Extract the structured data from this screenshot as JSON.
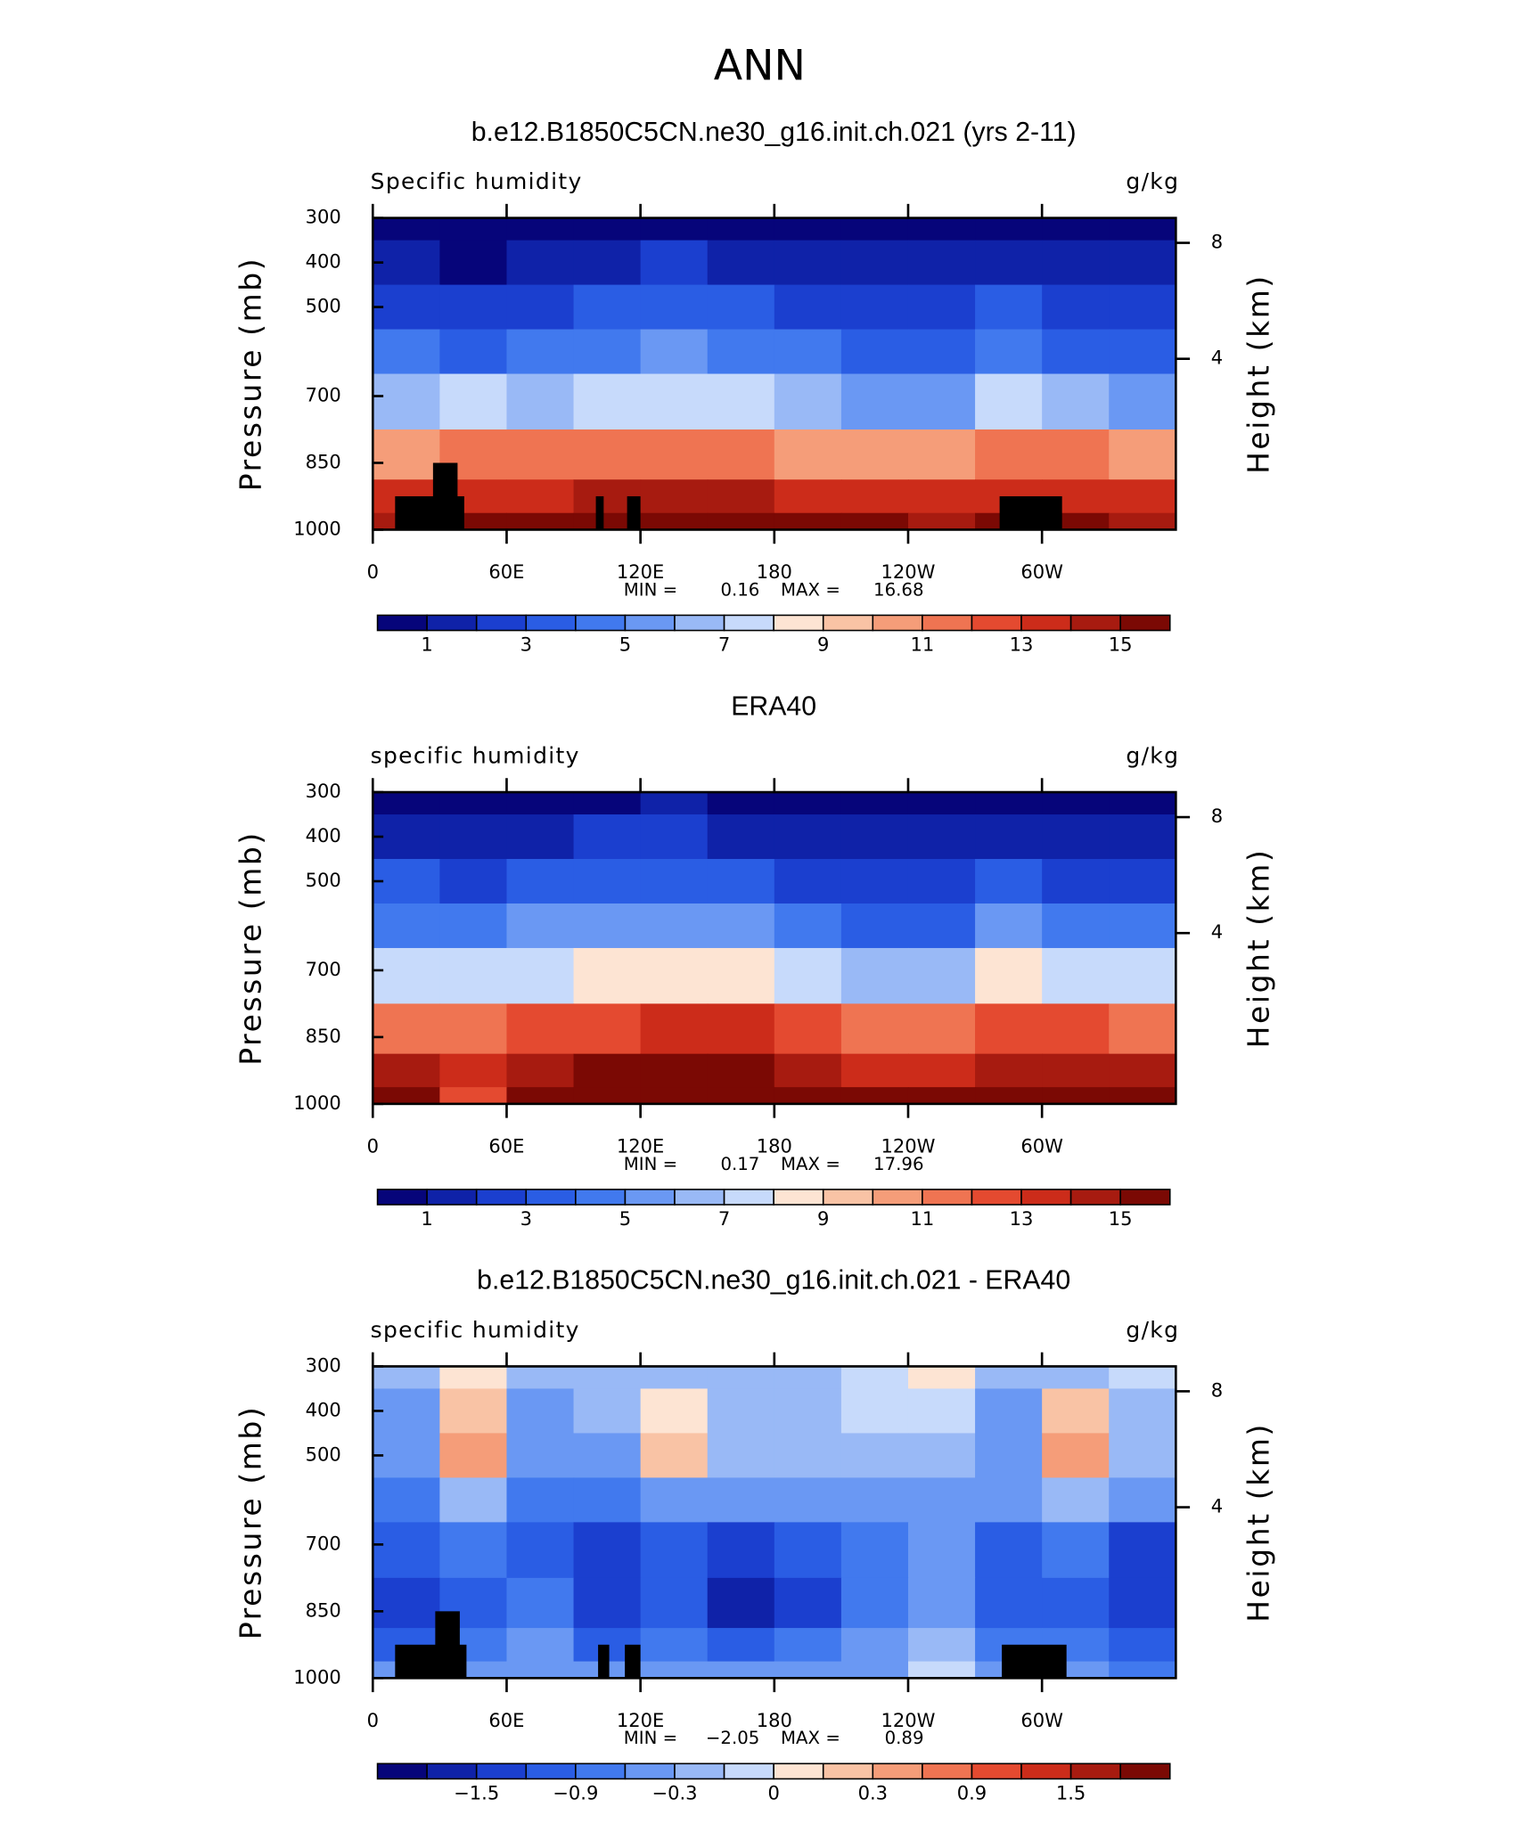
{
  "title": "ANN",
  "chart_data": [
    {
      "type": "contour",
      "title": "b.e12.B1850C5CN.ne30_g16.init.ch.021 (yrs 2-11)",
      "left_label": "Specific humidity",
      "right_label": "g/kg",
      "ylabel": "Pressure (mb)",
      "y2label": "Height (km)",
      "x": [
        15,
        45,
        75,
        105,
        135,
        165,
        195,
        225,
        255,
        285,
        315,
        345
      ],
      "y": [
        300,
        400,
        500,
        600,
        700,
        850,
        925,
        1000
      ],
      "z": [
        [
          0.5,
          0.4,
          0.6,
          0.8,
          0.9,
          0.7,
          0.5,
          0.4,
          0.4,
          0.7,
          0.5,
          0.5
        ],
        [
          1.3,
          0.9,
          1.5,
          1.8,
          2.0,
          1.7,
          1.3,
          1.0,
          1.0,
          1.6,
          1.3,
          1.1
        ],
        [
          2.6,
          2.0,
          2.8,
          3.2,
          3.5,
          3.2,
          2.6,
          2.0,
          2.1,
          3.0,
          2.6,
          2.3
        ],
        [
          4.0,
          3.8,
          4.2,
          4.8,
          5.2,
          4.8,
          4.0,
          3.2,
          3.4,
          4.6,
          3.9,
          3.6
        ],
        [
          6.2,
          7.0,
          6.3,
          7.0,
          7.4,
          7.0,
          6.2,
          5.2,
          5.6,
          7.4,
          6.0,
          5.8
        ],
        [
          10.5,
          11.0,
          11.0,
          11.5,
          11.8,
          11.5,
          10.8,
          10.0,
          10.5,
          11.5,
          11.0,
          10.5
        ],
        [
          13.2,
          13.5,
          13.5,
          14.0,
          14.3,
          14.0,
          13.5,
          13.0,
          13.2,
          13.8,
          13.5,
          13.0
        ],
        [
          14.5,
          15.0,
          15.5,
          16.2,
          16.5,
          16.0,
          15.5,
          15.2,
          14.8,
          15.5,
          15.0,
          14.5
        ]
      ],
      "xlim": [
        0,
        360
      ],
      "xticks": [
        0,
        {
          "value": 60,
          "label": "60E"
        },
        {
          "value": 120,
          "label": "120E"
        },
        180,
        {
          "value": 240,
          "label": "120W"
        },
        {
          "value": 300,
          "label": "60W"
        }
      ],
      "ylim": [
        1000,
        300
      ],
      "yticks": [
        300,
        400,
        500,
        700,
        850,
        1000
      ],
      "y2ticks": [
        4,
        8
      ],
      "min_label": "MIN =",
      "min": 0.16,
      "max_label": "MAX =",
      "max": 16.68,
      "masks": [
        {
          "x": [
            10,
            41
          ],
          "p": 925
        },
        {
          "x": [
            27,
            38
          ],
          "p": 850
        },
        {
          "x": [
            100,
            103.5
          ],
          "p": 925
        },
        {
          "x": [
            114,
            120
          ],
          "p": 925
        },
        {
          "x": [
            281,
            309
          ],
          "p": 925
        }
      ],
      "colorbar": {
        "levels": [
          1,
          2,
          3,
          4,
          5,
          6,
          7,
          8,
          9,
          10,
          11,
          12,
          13,
          14,
          15
        ],
        "colors": [
          "#06057a",
          "#0f22a8",
          "#1b3fcf",
          "#2a5de4",
          "#4179ee",
          "#6a98f3",
          "#99b9f6",
          "#c7dafb",
          "#fde4d3",
          "#f9c3a5",
          "#f59d79",
          "#ef7452",
          "#e44a30",
          "#cc2c1a",
          "#a71b10",
          "#7b0904"
        ],
        "ticks": [
          1,
          3,
          5,
          7,
          9,
          11,
          13,
          15
        ]
      }
    },
    {
      "type": "contour",
      "title": "ERA40",
      "left_label": "specific humidity",
      "right_label": "g/kg",
      "ylabel": "Pressure (mb)",
      "y2label": "Height (km)",
      "x": [
        15,
        45,
        75,
        105,
        135,
        165,
        195,
        225,
        255,
        285,
        315,
        345
      ],
      "y": [
        300,
        400,
        500,
        600,
        700,
        850,
        925,
        1000
      ],
      "z": [
        [
          0.6,
          0.4,
          0.7,
          0.9,
          1.0,
          0.8,
          0.6,
          0.4,
          0.4,
          0.8,
          0.6,
          0.6
        ],
        [
          1.5,
          1.0,
          1.8,
          2.1,
          2.2,
          1.9,
          1.5,
          1.1,
          1.1,
          1.8,
          1.4,
          1.3
        ],
        [
          3.0,
          2.2,
          3.2,
          3.6,
          3.8,
          3.5,
          2.9,
          2.2,
          2.3,
          3.3,
          2.8,
          2.6
        ],
        [
          4.8,
          4.0,
          5.0,
          5.6,
          5.9,
          5.5,
          4.6,
          3.7,
          3.8,
          5.2,
          4.4,
          4.3
        ],
        [
          7.4,
          7.6,
          7.5,
          8.3,
          8.6,
          8.4,
          7.3,
          6.0,
          6.2,
          8.2,
          7.0,
          7.0
        ],
        [
          11.8,
          11.5,
          12.0,
          12.8,
          13.1,
          13.0,
          12.0,
          11.0,
          11.0,
          12.6,
          12.0,
          11.9
        ],
        [
          14.2,
          13.0,
          14.5,
          15.1,
          15.3,
          15.0,
          14.5,
          13.7,
          13.6,
          14.6,
          14.3,
          14.1
        ],
        [
          15.2,
          12.5,
          16.0,
          16.8,
          17.0,
          16.7,
          16.0,
          15.5,
          15.0,
          16.0,
          15.6,
          15.3
        ]
      ],
      "xlim": [
        0,
        360
      ],
      "xticks": [
        0,
        {
          "value": 60,
          "label": "60E"
        },
        {
          "value": 120,
          "label": "120E"
        },
        180,
        {
          "value": 240,
          "label": "120W"
        },
        {
          "value": 300,
          "label": "60W"
        }
      ],
      "ylim": [
        1000,
        300
      ],
      "yticks": [
        300,
        400,
        500,
        700,
        850,
        1000
      ],
      "y2ticks": [
        4,
        8
      ],
      "min_label": "MIN =",
      "min": 0.17,
      "max_label": "MAX =",
      "max": 17.96,
      "colorbar": {
        "levels": [
          1,
          2,
          3,
          4,
          5,
          6,
          7,
          8,
          9,
          10,
          11,
          12,
          13,
          14,
          15
        ],
        "colors": [
          "#06057a",
          "#0f22a8",
          "#1b3fcf",
          "#2a5de4",
          "#4179ee",
          "#6a98f3",
          "#99b9f6",
          "#c7dafb",
          "#fde4d3",
          "#f9c3a5",
          "#f59d79",
          "#ef7452",
          "#e44a30",
          "#cc2c1a",
          "#a71b10",
          "#7b0904"
        ],
        "ticks": [
          1,
          3,
          5,
          7,
          9,
          11,
          13,
          15
        ]
      }
    },
    {
      "type": "contour",
      "title": "b.e12.B1850C5CN.ne30_g16.init.ch.021 - ERA40",
      "left_label": "specific humidity",
      "right_label": "g/kg",
      "ylabel": "Pressure (mb)",
      "y2label": "Height (km)",
      "x": [
        15,
        45,
        75,
        105,
        135,
        165,
        195,
        225,
        255,
        285,
        315,
        345
      ],
      "y": [
        300,
        400,
        500,
        600,
        700,
        850,
        925,
        1000
      ],
      "z": [
        [
          -0.2,
          0.05,
          -0.15,
          -0.2,
          -0.25,
          -0.2,
          -0.2,
          -0.1,
          0.05,
          -0.2,
          -0.15,
          -0.1
        ],
        [
          -0.4,
          0.2,
          -0.4,
          -0.3,
          0.0,
          -0.3,
          -0.3,
          -0.1,
          -0.1,
          -0.4,
          0.15,
          -0.2
        ],
        [
          -0.5,
          0.4,
          -0.5,
          -0.5,
          0.1,
          -0.3,
          -0.3,
          -0.2,
          -0.3,
          -0.4,
          0.35,
          -0.3
        ],
        [
          -0.8,
          -0.2,
          -0.7,
          -0.7,
          -0.6,
          -0.6,
          -0.5,
          -0.5,
          -0.5,
          -0.6,
          -0.3,
          -0.6
        ],
        [
          -1.2,
          -0.9,
          -1.0,
          -1.3,
          -1.0,
          -1.5,
          -1.0,
          -0.8,
          -0.6,
          -1.0,
          -0.9,
          -1.3
        ],
        [
          -1.3,
          -1.0,
          -0.8,
          -1.4,
          -1.2,
          -1.7,
          -1.3,
          -0.9,
          -0.4,
          -1.2,
          -1.0,
          -1.4
        ],
        [
          -1.0,
          -0.8,
          -0.6,
          -1.0,
          -0.8,
          -1.1,
          -0.9,
          -0.6,
          -0.2,
          -0.8,
          -0.7,
          -1.0
        ],
        [
          -0.6,
          -0.5,
          -0.4,
          -0.6,
          -0.5,
          -0.6,
          -0.5,
          -0.4,
          -0.1,
          -0.5,
          -0.6,
          -0.7
        ]
      ],
      "xlim": [
        0,
        360
      ],
      "xticks": [
        0,
        {
          "value": 60,
          "label": "60E"
        },
        {
          "value": 120,
          "label": "120E"
        },
        180,
        {
          "value": 240,
          "label": "120W"
        },
        {
          "value": 300,
          "label": "60W"
        }
      ],
      "ylim": [
        1000,
        300
      ],
      "yticks": [
        300,
        400,
        500,
        700,
        850,
        1000
      ],
      "y2ticks": [
        4,
        8
      ],
      "min_label": "MIN =",
      "min": {
        "value": -2.05,
        "label": "−2.05"
      },
      "max_label": "MAX =",
      "max": 0.89,
      "masks": [
        {
          "x": [
            10,
            42
          ],
          "p": 925
        },
        {
          "x": [
            28,
            39
          ],
          "p": 850
        },
        {
          "x": [
            101,
            106
          ],
          "p": 925
        },
        {
          "x": [
            113,
            120
          ],
          "p": 925
        },
        {
          "x": [
            282,
            311
          ],
          "p": 925
        }
      ],
      "colorbar": {
        "levels": [
          -1.8,
          -1.5,
          -1.2,
          -0.9,
          -0.6,
          -0.3,
          -0.1,
          0,
          0.1,
          0.3,
          0.6,
          0.9,
          1.2,
          1.5,
          1.8
        ],
        "colors": [
          "#06057a",
          "#0f22a8",
          "#1b3fcf",
          "#2a5de4",
          "#4179ee",
          "#6a98f3",
          "#99b9f6",
          "#c7dafb",
          "#fde4d3",
          "#f9c3a5",
          "#f59d79",
          "#ef7452",
          "#e44a30",
          "#cc2c1a",
          "#a71b10",
          "#7b0904"
        ],
        "ticks": [
          {
            "value": -1.5,
            "label": "−1.5"
          },
          {
            "value": -0.9,
            "label": "−0.9"
          },
          {
            "value": -0.3,
            "label": "−0.3"
          },
          0,
          0.3,
          0.9,
          1.5
        ]
      }
    }
  ]
}
